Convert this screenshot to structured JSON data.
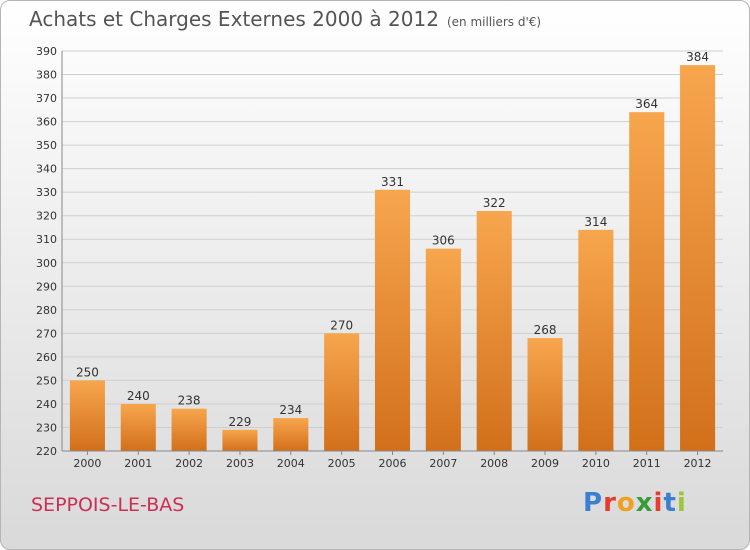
{
  "header": {
    "title": "Achats et Charges Externes 2000 à 2012",
    "subtitle": "(en milliers d'€)"
  },
  "footer": {
    "town": "SEPPOIS-LE-BAS",
    "logo_letters": [
      "P",
      "r",
      "o",
      "x",
      "i",
      "t",
      "i"
    ],
    "logo_colors": [
      "#3a7fd0",
      "#e63c2f",
      "#f0a020",
      "#3a9a3a",
      "#e63c2f",
      "#3a7fd0",
      "#9bc63a"
    ]
  },
  "chart_data": {
    "type": "bar",
    "title": "Achats et Charges Externes 2000 à 2012",
    "subtitle": "(en milliers d'€)",
    "xlabel": "",
    "ylabel": "",
    "categories": [
      "2000",
      "2001",
      "2002",
      "2003",
      "2004",
      "2005",
      "2006",
      "2007",
      "2008",
      "2009",
      "2010",
      "2011",
      "2012"
    ],
    "values": [
      250,
      240,
      238,
      229,
      234,
      270,
      331,
      306,
      322,
      268,
      314,
      364,
      384
    ],
    "ylim": [
      220,
      390
    ],
    "yticks": [
      220,
      230,
      240,
      250,
      260,
      270,
      280,
      290,
      300,
      310,
      320,
      330,
      340,
      350,
      360,
      370,
      380,
      390
    ],
    "grid": true,
    "bar_color_top": "#f7a64e",
    "bar_color_bottom": "#d2701a",
    "legend": "none"
  }
}
